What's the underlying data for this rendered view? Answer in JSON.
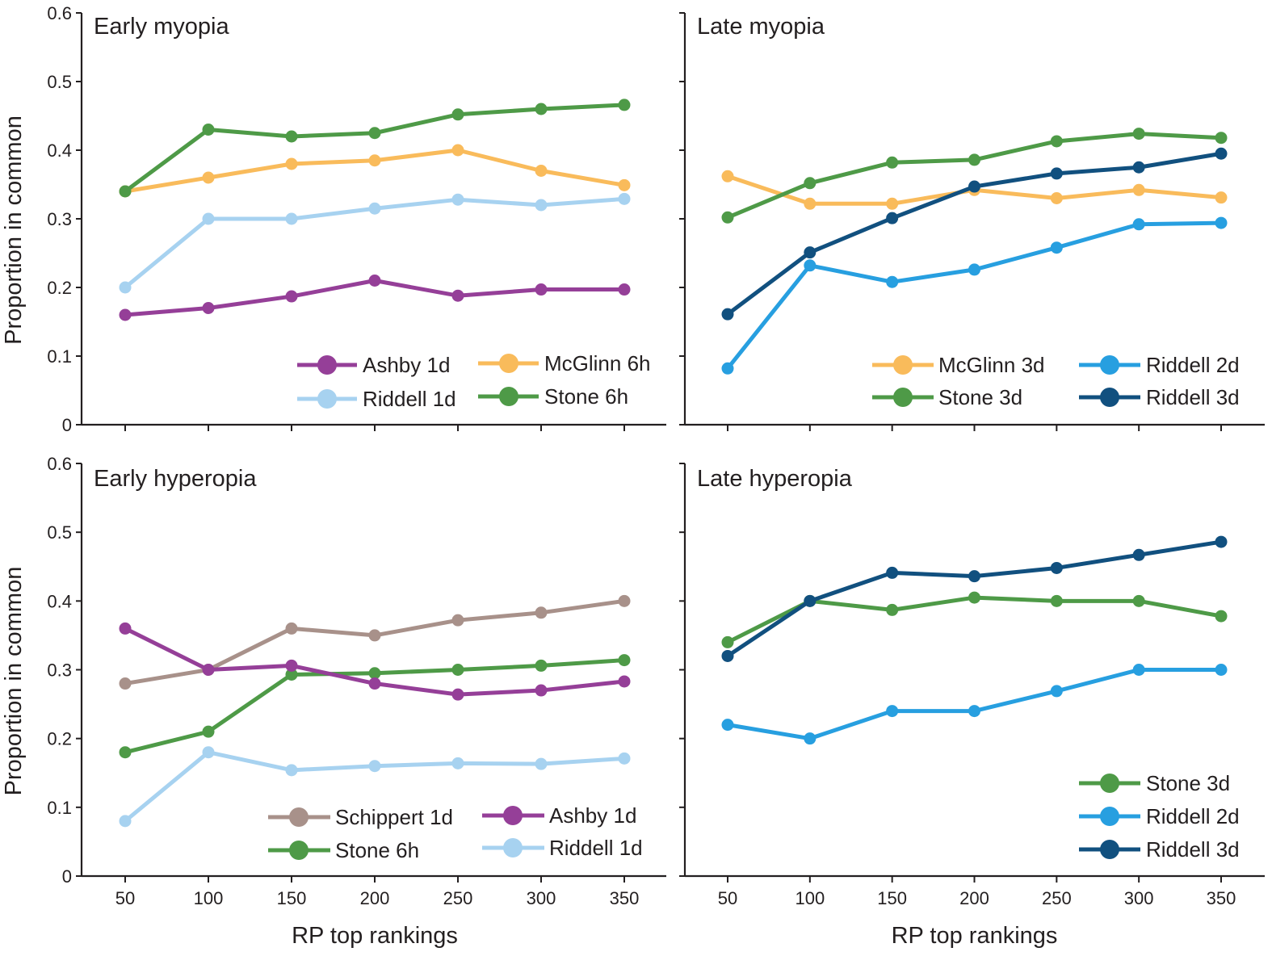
{
  "chart_data": [
    {
      "type": "line",
      "title": "Early myopia",
      "xlabel": "",
      "ylabel": "Proportion in common",
      "x": [
        50,
        100,
        150,
        200,
        250,
        300,
        350
      ],
      "xlim": [
        25,
        375
      ],
      "ylim": [
        0,
        0.6
      ],
      "yticks": [
        "0",
        "0.1",
        "0.2",
        "0.3",
        "0.4",
        "0.5",
        "0.6"
      ],
      "xticks": [],
      "series": [
        {
          "name": "Ashby 1d",
          "color": "#953f98",
          "values": [
            0.16,
            0.17,
            0.187,
            0.21,
            0.188,
            0.197,
            0.197
          ]
        },
        {
          "name": "Riddell 1d",
          "color": "#a7d2f0",
          "values": [
            0.2,
            0.3,
            0.3,
            0.315,
            0.328,
            0.32,
            0.329
          ]
        },
        {
          "name": "McGlinn 6h",
          "color": "#f9bb5b",
          "values": [
            0.34,
            0.36,
            0.38,
            0.385,
            0.4,
            0.37,
            0.349
          ]
        },
        {
          "name": "Stone 6h",
          "color": "#4e9a47",
          "values": [
            0.34,
            0.43,
            0.42,
            0.425,
            0.452,
            0.46,
            0.466
          ]
        }
      ]
    },
    {
      "type": "line",
      "title": "Late myopia",
      "xlabel": "",
      "ylabel": "",
      "x": [
        50,
        100,
        150,
        200,
        250,
        300,
        350
      ],
      "xlim": [
        25,
        375
      ],
      "ylim": [
        0,
        0.6
      ],
      "yticks": [],
      "xticks": [],
      "series": [
        {
          "name": "McGlinn 3d",
          "color": "#f9bb5b",
          "values": [
            0.362,
            0.322,
            0.322,
            0.342,
            0.33,
            0.342,
            0.331
          ]
        },
        {
          "name": "Stone 3d",
          "color": "#4e9a47",
          "values": [
            0.302,
            0.352,
            0.382,
            0.386,
            0.413,
            0.424,
            0.418
          ]
        },
        {
          "name": "Riddell 2d",
          "color": "#279fe0",
          "values": [
            0.082,
            0.232,
            0.208,
            0.226,
            0.258,
            0.292,
            0.294
          ]
        },
        {
          "name": "Riddell 3d",
          "color": "#11507f",
          "values": [
            0.161,
            0.251,
            0.301,
            0.347,
            0.366,
            0.375,
            0.395
          ]
        }
      ]
    },
    {
      "type": "line",
      "title": "Early hyperopia",
      "xlabel": "RP top rankings",
      "ylabel": "Proportion in common",
      "x": [
        50,
        100,
        150,
        200,
        250,
        300,
        350
      ],
      "xlim": [
        25,
        375
      ],
      "ylim": [
        0,
        0.6
      ],
      "yticks": [
        "0",
        "0.1",
        "0.2",
        "0.3",
        "0.4",
        "0.5",
        "0.6"
      ],
      "xticks": [
        "50",
        "100",
        "150",
        "200",
        "250",
        "300",
        "350"
      ],
      "series": [
        {
          "name": "Schippert 1d",
          "color": "#a8918a",
          "values": [
            0.28,
            0.3,
            0.36,
            0.35,
            0.372,
            0.383,
            0.4
          ]
        },
        {
          "name": "Stone 6h",
          "color": "#4e9a47",
          "values": [
            0.18,
            0.21,
            0.293,
            0.295,
            0.3,
            0.306,
            0.314
          ]
        },
        {
          "name": "Ashby 1d",
          "color": "#953f98",
          "values": [
            0.36,
            0.3,
            0.306,
            0.28,
            0.264,
            0.27,
            0.283
          ]
        },
        {
          "name": "Riddell 1d",
          "color": "#a7d2f0",
          "values": [
            0.08,
            0.18,
            0.154,
            0.16,
            0.164,
            0.163,
            0.171
          ]
        }
      ]
    },
    {
      "type": "line",
      "title": "Late hyperopia",
      "xlabel": "RP top rankings",
      "ylabel": "",
      "x": [
        50,
        100,
        150,
        200,
        250,
        300,
        350
      ],
      "xlim": [
        25,
        375
      ],
      "ylim": [
        0,
        0.6
      ],
      "yticks": [],
      "xticks": [
        "50",
        "100",
        "150",
        "200",
        "250",
        "300",
        "350"
      ],
      "series": [
        {
          "name": "Stone 3d",
          "color": "#4e9a47",
          "values": [
            0.34,
            0.4,
            0.387,
            0.405,
            0.4,
            0.4,
            0.378
          ]
        },
        {
          "name": "Riddell 2d",
          "color": "#279fe0",
          "values": [
            0.22,
            0.2,
            0.24,
            0.24,
            0.269,
            0.3,
            0.3
          ]
        },
        {
          "name": "Riddell 3d",
          "color": "#11507f",
          "values": [
            0.32,
            0.4,
            0.441,
            0.436,
            0.448,
            0.467,
            0.486
          ]
        }
      ]
    }
  ]
}
